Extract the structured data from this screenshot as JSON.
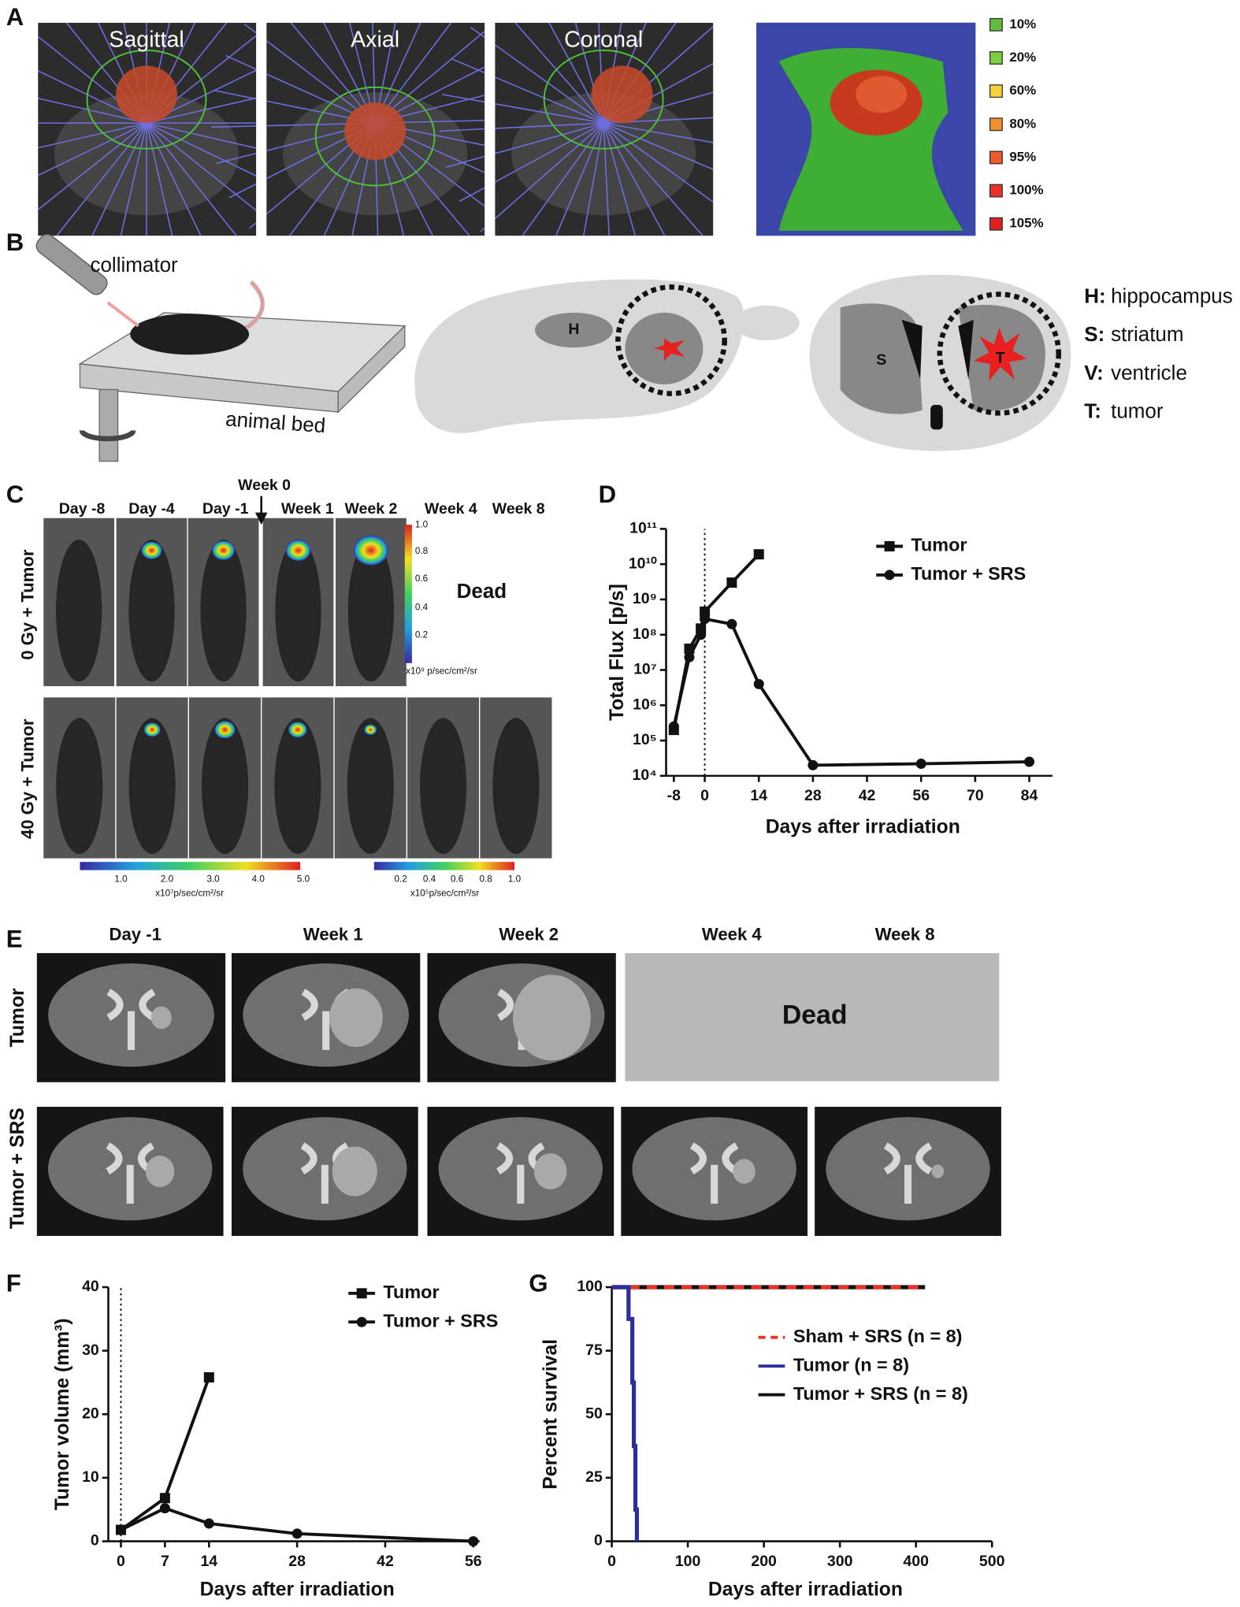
{
  "panels": {
    "a": "A",
    "b": "B",
    "c": "C",
    "d": "D",
    "e": "E",
    "f": "F",
    "g": "G"
  },
  "panel_a": {
    "views": [
      "Sagittal",
      "Axial",
      "Coronal"
    ],
    "isodose": [
      {
        "label": "10%",
        "color": "#5fbf3a"
      },
      {
        "label": "20%",
        "color": "#7ccf3f"
      },
      {
        "label": "60%",
        "color": "#f3d23a"
      },
      {
        "label": "80%",
        "color": "#f0902a"
      },
      {
        "label": "95%",
        "color": "#ef5a2a"
      },
      {
        "label": "100%",
        "color": "#e8332a"
      },
      {
        "label": "105%",
        "color": "#e02020"
      }
    ]
  },
  "panel_b": {
    "collimator": "collimator",
    "bed": "animal bed",
    "h": "H",
    "s": "S",
    "t": "T",
    "legend": [
      {
        "key": "H:",
        "text": "hippocampus"
      },
      {
        "key": "S:",
        "text": "striatum"
      },
      {
        "key": "V:",
        "text": "ventricle"
      },
      {
        "key": "T:",
        "text": "tumor"
      }
    ]
  },
  "panel_c": {
    "columns": [
      "Day -8",
      "Day -4",
      "Day -1",
      "Week 1",
      "Week 2",
      "Week 4",
      "Week 8"
    ],
    "week0": "Week 0",
    "rows": [
      "0 Gy + Tumor",
      "40 Gy + Tumor"
    ],
    "dead": "Dead",
    "scale_right": {
      "ticks": [
        "1.0",
        "0.8",
        "0.6",
        "0.4",
        "0.2"
      ],
      "unit": "x10⁹ p/sec/cm²/sr"
    },
    "scale_bottom_left": {
      "ticks": [
        "1.0",
        "2.0",
        "3.0",
        "4.0",
        "5.0"
      ],
      "unit": "x10⁷p/sec/cm²/sr"
    },
    "scale_bottom_right": {
      "ticks": [
        "0.2",
        "0.4",
        "0.6",
        "0.8",
        "1.0"
      ],
      "unit": "x10⁵p/sec/cm²/sr"
    }
  },
  "panel_e": {
    "columns": [
      "Day -1",
      "Week 1",
      "Week 2",
      "Week 4",
      "Week 8"
    ],
    "rows": [
      "Tumor",
      "Tumor + SRS"
    ],
    "dead": "Dead"
  },
  "chart_data": [
    {
      "type": "line",
      "yscale": "log",
      "y_label": "Total Flux [p/s]",
      "x_label": "Days after irradiation",
      "xlim": [
        -10,
        90
      ],
      "xticks": [
        -8,
        0,
        14,
        28,
        42,
        56,
        70,
        84
      ],
      "ylim": [
        10000,
        100000000000
      ],
      "yticks": [
        {
          "value": 10000,
          "label": "10⁴"
        },
        {
          "value": 100000,
          "label": "10⁵"
        },
        {
          "value": 1000000,
          "label": "10⁶"
        },
        {
          "value": 10000000,
          "label": "10⁷"
        },
        {
          "value": 100000000,
          "label": "10⁸"
        },
        {
          "value": 1000000000,
          "label": "10⁹"
        },
        {
          "value": 10000000000,
          "label": "10¹⁰"
        },
        {
          "value": 100000000000,
          "label": "10¹¹"
        }
      ],
      "vline": 0,
      "series": [
        {
          "name": "Tumor",
          "color": "#111111",
          "marker": "square",
          "x": [
            -8,
            -4,
            -1,
            0,
            7,
            14
          ],
          "values": [
            200000,
            40000000,
            150000000,
            450000000,
            3000000000,
            19000000000
          ]
        },
        {
          "name": "Tumor + SRS",
          "color": "#111111",
          "marker": "circle",
          "x": [
            -8,
            -4,
            -1,
            0,
            7,
            14,
            28,
            56,
            84
          ],
          "values": [
            250000,
            23000000,
            100000000,
            280000000,
            200000000,
            4000000,
            20000,
            22000,
            25000
          ]
        }
      ]
    },
    {
      "type": "line",
      "y_label": "Tumor volume (mm³)",
      "x_label": "Days after irradiation",
      "xlim": [
        -2,
        57
      ],
      "xticks": [
        0,
        7,
        14,
        28,
        42,
        56
      ],
      "ylim": [
        0,
        40
      ],
      "yticks": [
        0,
        10,
        20,
        30,
        40
      ],
      "vline": 0,
      "series": [
        {
          "name": "Tumor",
          "color": "#111111",
          "marker": "square",
          "x": [
            0,
            7,
            14
          ],
          "values": [
            1.8,
            6.8,
            25.8
          ]
        },
        {
          "name": "Tumor + SRS",
          "color": "#111111",
          "marker": "circle",
          "x": [
            0,
            7,
            14,
            28,
            56
          ],
          "values": [
            1.8,
            5.2,
            2.8,
            1.2,
            0
          ]
        }
      ]
    },
    {
      "type": "step",
      "y_label": "Percent survival",
      "x_label": "Days after irradiation",
      "xlim": [
        0,
        500
      ],
      "xticks": [
        0,
        100,
        200,
        300,
        400,
        500
      ],
      "ylim": [
        0,
        100
      ],
      "yticks": [
        0,
        25,
        50,
        75,
        100
      ],
      "series": [
        {
          "name": "Tumor + SRS (n = 8)",
          "color": "#111111",
          "x": [
            0,
            412
          ],
          "values": [
            100,
            100
          ]
        },
        {
          "name": "Sham + SRS (n = 8)",
          "color": "#e8332a",
          "dash": true,
          "x": [
            0,
            412
          ],
          "values": [
            100,
            100
          ]
        },
        {
          "name": "Tumor (n = 8)",
          "color": "#2b2f9e",
          "x": [
            0,
            22,
            27,
            29,
            31,
            33
          ],
          "values": [
            100,
            87.5,
            62.5,
            37.5,
            12.5,
            0
          ]
        }
      ],
      "legend_order": [
        1,
        2,
        0
      ]
    }
  ]
}
